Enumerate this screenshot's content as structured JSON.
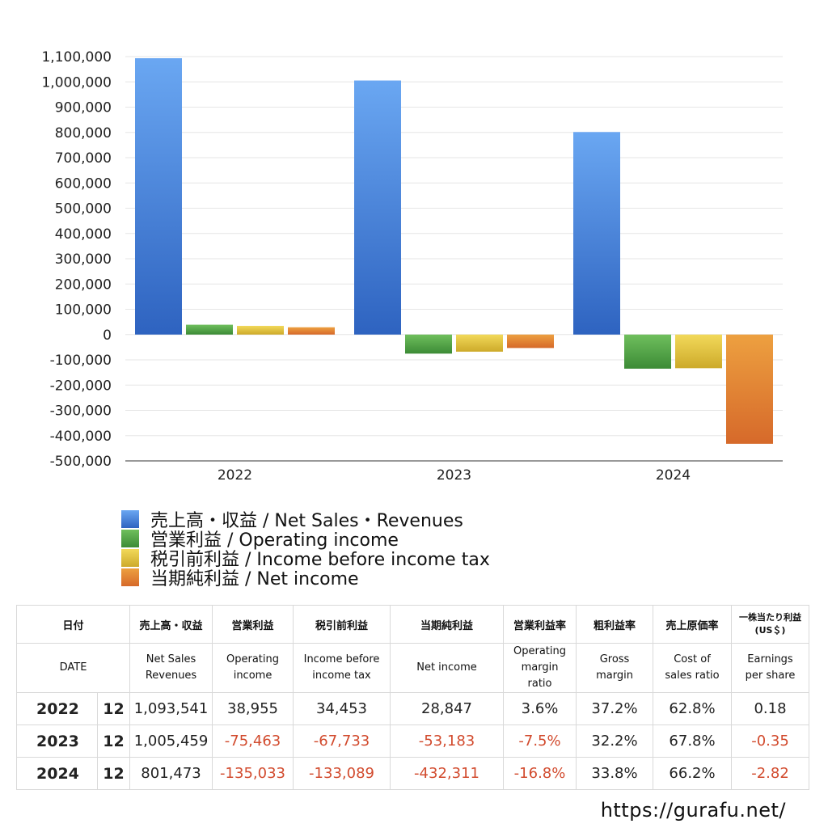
{
  "chart_data": {
    "type": "bar",
    "categories": [
      "2022",
      "2023",
      "2024"
    ],
    "series": [
      {
        "name": "売上高・収益 / Net Sales・Revenues",
        "values": [
          1093541,
          1005459,
          801473
        ],
        "color": "#3f7fdc"
      },
      {
        "name": "営業利益 / Operating income",
        "values": [
          38955,
          -75463,
          -135033
        ],
        "color": "#4aa043"
      },
      {
        "name": "税引前利益 / Income before income tax",
        "values": [
          34453,
          -67733,
          -133089
        ],
        "color": "#e3c43a"
      },
      {
        "name": "当期純利益 / Net income",
        "values": [
          28847,
          -53183,
          -432311
        ],
        "color": "#e07b30"
      }
    ],
    "ylim": [
      -500000,
      1100000
    ],
    "yticks": [
      "1,100,000",
      "1,000,000",
      "900,000",
      "800,000",
      "700,000",
      "600,000",
      "500,000",
      "400,000",
      "300,000",
      "200,000",
      "100,000",
      "0",
      "-100,000",
      "-200,000",
      "-300,000",
      "-400,000",
      "-500,000"
    ],
    "grid": true,
    "legend_position": "bottom"
  },
  "table": {
    "header_jp": [
      "日付",
      "売上高・収益",
      "営業利益",
      "税引前利益",
      "当期純利益",
      "営業利益率",
      "粗利益率",
      "売上原価率",
      "一株当たり利益\n(US＄)"
    ],
    "header_en": [
      "DATE",
      "Net Sales\nRevenues",
      "Operating\nincome",
      "Income before\nincome tax",
      "Net income",
      "Operating\nmargin\nratio",
      "Gross\nmargin",
      "Cost of\nsales ratio",
      "Earnings\nper share"
    ],
    "rows": [
      {
        "year": "2022",
        "month": "12",
        "cells": [
          "1,093,541",
          "38,955",
          "34,453",
          "28,847",
          "3.6%",
          "37.2%",
          "62.8%",
          "0.18"
        ]
      },
      {
        "year": "2023",
        "month": "12",
        "cells": [
          "1,005,459",
          "-75,463",
          "-67,733",
          "-53,183",
          "-7.5%",
          "32.2%",
          "67.8%",
          "-0.35"
        ]
      },
      {
        "year": "2024",
        "month": "12",
        "cells": [
          "801,473",
          "-135,033",
          "-133,089",
          "-432,311",
          "-16.8%",
          "33.8%",
          "66.2%",
          "-2.82"
        ]
      }
    ]
  },
  "footer": {
    "url": "https://gurafu.net/"
  }
}
